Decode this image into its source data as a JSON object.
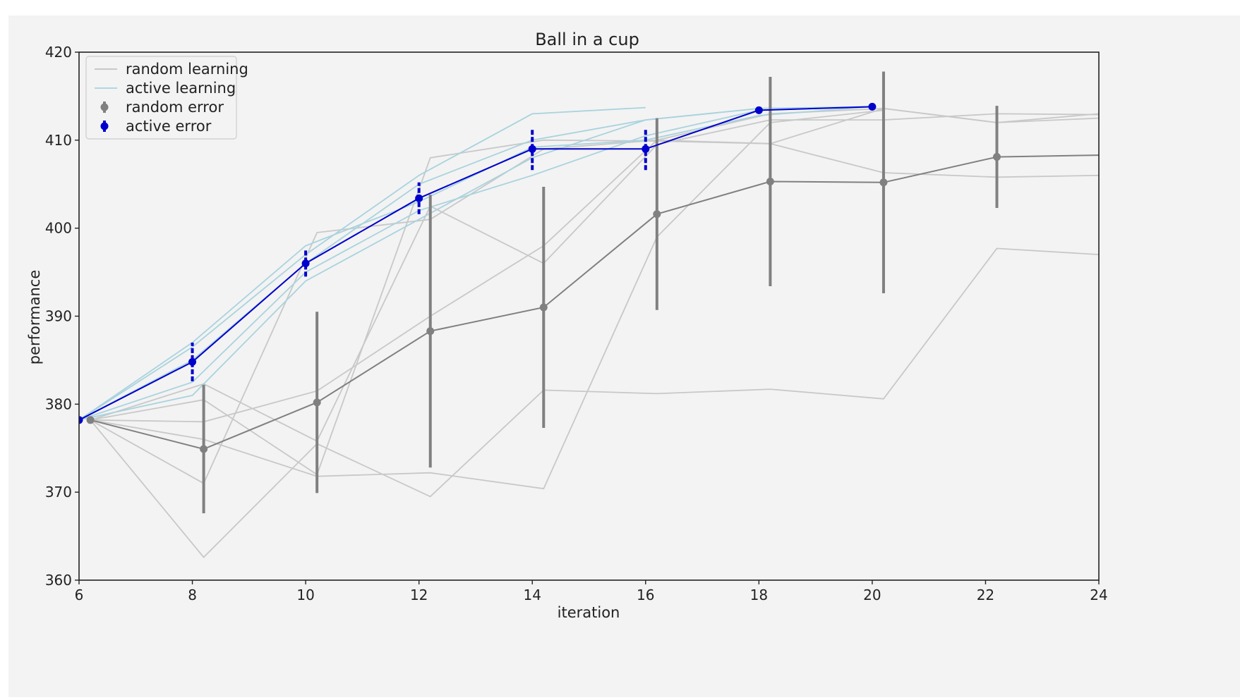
{
  "chart_data": {
    "type": "line",
    "title": "Ball in a cup",
    "xlabel": "iteration",
    "ylabel": "performance",
    "xlim": [
      6,
      24
    ],
    "ylim": [
      360,
      420
    ],
    "x_ticks": [
      6,
      8,
      10,
      12,
      14,
      16,
      18,
      20,
      22,
      24
    ],
    "y_ticks": [
      360,
      370,
      380,
      390,
      400,
      410,
      420
    ],
    "grid": false,
    "legend_placement": "top-left",
    "legend": [
      {
        "label": "random learning",
        "kind": "line",
        "color": "#c8c8c8"
      },
      {
        "label": "active learning",
        "kind": "line",
        "color": "#add8e6"
      },
      {
        "label": "random error",
        "kind": "errorbar",
        "color": "#808080"
      },
      {
        "label": "active error",
        "kind": "errorbar",
        "color": "#0000cd"
      }
    ],
    "colors": {
      "random_runs": "#c8c8c8",
      "active_runs": "#a9d3de",
      "random_error": "#808080",
      "active_error": "#0000cd",
      "background": "#f3f3f3"
    },
    "random_runs": [
      {
        "x": [
          6.2,
          8.2,
          10.2,
          12.2,
          14.2,
          16.2,
          18.2,
          20.2,
          22.2,
          24
        ],
        "y": [
          378.2,
          382.3,
          375.8,
          402.5,
          396.0,
          409.5,
          412.3,
          412.3,
          413.0,
          412.9
        ]
      },
      {
        "x": [
          6.2,
          8.2,
          10.2,
          12.2,
          14.2,
          16.2,
          18.2,
          20.2,
          22.2,
          24
        ],
        "y": [
          378.2,
          378.0,
          381.5,
          390.0,
          398.0,
          410.0,
          409.6,
          406.3,
          405.8,
          406.0
        ]
      },
      {
        "x": [
          6.2,
          8.2,
          10.2,
          12.2,
          14.2,
          16.2,
          18.2,
          20.2,
          22.2,
          24
        ],
        "y": [
          378.2,
          371.0,
          399.5,
          401.0,
          409.0,
          410.0,
          413.0,
          413.6,
          412.0,
          413.0
        ]
      },
      {
        "x": [
          6.2,
          8.2,
          10.2,
          12.2,
          14.2,
          16.2,
          18.2,
          20.2,
          22.2,
          24
        ],
        "y": [
          378.2,
          362.6,
          375.5,
          369.5,
          381.6,
          381.2,
          381.7,
          380.6,
          397.7,
          397.0
        ]
      },
      {
        "x": [
          6.2,
          8.2,
          10.2,
          12.2,
          14.2,
          16.2,
          18.2,
          20.2,
          22.2,
          24
        ],
        "y": [
          378.2,
          380.5,
          372.0,
          408.0,
          410.0,
          409.9,
          409.6,
          413.6,
          412.0,
          412.5
        ]
      },
      {
        "x": [
          6.2,
          8.2,
          10.2,
          12.2,
          14.2,
          16.2,
          18.2,
          20.2
        ],
        "y": [
          378.2,
          376.0,
          371.8,
          372.2,
          370.4,
          399.0,
          412.0,
          413.4
        ]
      }
    ],
    "active_runs": [
      {
        "x": [
          6,
          8,
          10,
          12,
          14,
          16
        ],
        "y": [
          378.2,
          386.5,
          397.0,
          406.0,
          413.0,
          413.7
        ]
      },
      {
        "x": [
          6,
          8,
          10,
          12,
          14,
          16,
          18,
          20
        ],
        "y": [
          378.2,
          381.0,
          394.0,
          401.0,
          408.0,
          412.3,
          413.6,
          413.8
        ]
      },
      {
        "x": [
          6,
          8,
          10,
          12,
          14,
          16,
          18,
          20
        ],
        "y": [
          378.2,
          385.0,
          396.0,
          405.0,
          410.0,
          412.3,
          413.6,
          413.8
        ]
      },
      {
        "x": [
          6,
          8,
          10,
          12,
          14,
          16,
          18,
          20
        ],
        "y": [
          378.2,
          387.0,
          398.0,
          403.0,
          409.2,
          410.0,
          412.8,
          413.8
        ]
      },
      {
        "x": [
          6,
          8,
          10,
          12,
          14,
          16,
          18,
          20
        ],
        "y": [
          378.2,
          382.5,
          395.0,
          402.0,
          406.0,
          410.5,
          413.4,
          413.8
        ]
      }
    ],
    "series": [
      {
        "name": "random error",
        "x": [
          6.2,
          8.2,
          10.2,
          12.2,
          14.2,
          16.2,
          18.2,
          20.2,
          22.2,
          24
        ],
        "y": [
          378.2,
          374.9,
          380.2,
          388.3,
          391.0,
          401.6,
          405.3,
          405.2,
          408.1,
          408.3
        ],
        "err": [
          0,
          7.3,
          10.3,
          15.5,
          13.7,
          10.9,
          11.9,
          12.6,
          5.8,
          null
        ]
      },
      {
        "name": "active error",
        "x": [
          6,
          8,
          10,
          12,
          14,
          16,
          18,
          20
        ],
        "y": [
          378.2,
          384.8,
          396.0,
          403.4,
          409.0,
          409.0,
          413.4,
          413.8
        ],
        "err": [
          0,
          2.2,
          1.5,
          1.8,
          2.4,
          2.4,
          0.4,
          0.2
        ]
      }
    ]
  }
}
